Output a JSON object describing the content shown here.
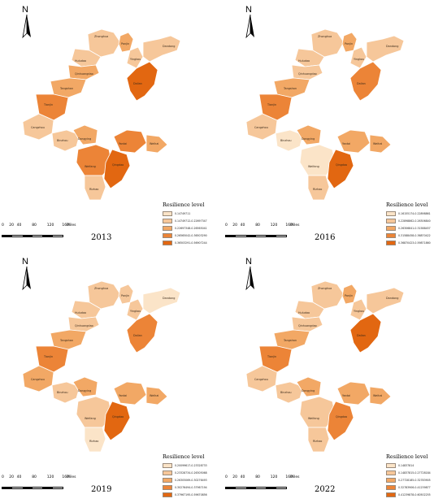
{
  "panels": [
    {
      "year": "2013",
      "legend_title": "Resilience level",
      "legend": [
        {
          "range": "0.14749711",
          "color": "#fbe4c8"
        },
        {
          "range": "0.14749712-0.22697347",
          "color": "#f6c79a"
        },
        {
          "range": "0.22697348-0.26565041",
          "color": "#f2a865"
        },
        {
          "range": "0.26565042-0.36503290",
          "color": "#ec8437"
        },
        {
          "range": "0.36503291-0.56907244",
          "color": "#e26711"
        }
      ],
      "fills": {
        "Zhonghua": 1,
        "Panjin": 2,
        "Huludao": 1,
        "Qinhuangdao": 2,
        "Yingkou": 1,
        "Dandong": 1,
        "Tangshan": 2,
        "Tianjin": 3,
        "Dalian": 4,
        "Cangzhou": 1,
        "Binzhou": 1,
        "Dongying": 2,
        "Yantai": 3,
        "Weihai": 2,
        "Weifang": 3,
        "Qingdao": 4,
        "Rizhao": 1
      }
    },
    {
      "year": "2016",
      "legend_title": "Resilience level",
      "legend": [
        {
          "range": "0.16155174-0.22898861",
          "color": "#fbe4c8"
        },
        {
          "range": "0.22898862-0.26306840",
          "color": "#f6c79a"
        },
        {
          "range": "0.26306841-0.31588457",
          "color": "#f2a865"
        },
        {
          "range": "0.31588458-0.36870422",
          "color": "#ec8437"
        },
        {
          "range": "0.36870423-0.59871860",
          "color": "#e26711"
        }
      ],
      "fills": {
        "Zhonghua": 1,
        "Panjin": 2,
        "Huludao": 1,
        "Qinhuangdao": 1,
        "Yingkou": 1,
        "Dandong": 1,
        "Tangshan": 2,
        "Tianjin": 3,
        "Dalian": 3,
        "Cangzhou": 1,
        "Binzhou": 0,
        "Dongying": 2,
        "Yantai": 2,
        "Weihai": 2,
        "Weifang": 0,
        "Qingdao": 4,
        "Rizhao": 1
      }
    },
    {
      "year": "2019",
      "legend_title": "Resilience level",
      "legend": [
        {
          "range": "0.20099617-0.23328733",
          "color": "#fbe4c8"
        },
        {
          "range": "0.23328734-0.26305068",
          "color": "#f6c79a"
        },
        {
          "range": "0.26305069-0.30276493",
          "color": "#f2a865"
        },
        {
          "range": "0.30276494-0.37967194",
          "color": "#ec8437"
        },
        {
          "range": "0.37967195-0.59670856",
          "color": "#e26711"
        }
      ],
      "fills": {
        "Zhonghua": 1,
        "Panjin": 1,
        "Huludao": 1,
        "Qinhuangdao": 1,
        "Yingkou": 1,
        "Dandong": 0,
        "Tangshan": 2,
        "Tianjin": 3,
        "Dalian": 3,
        "Cangzhou": 2,
        "Binzhou": 1,
        "Dongying": 2,
        "Yantai": 2,
        "Weihai": 2,
        "Weifang": 1,
        "Qingdao": 4,
        "Rizhao": 0
      }
    },
    {
      "year": "2022",
      "legend_title": "Resilience level",
      "legend": [
        {
          "range": "0.14837814",
          "color": "#fbe4c8"
        },
        {
          "range": "0.14837815-0.27728184",
          "color": "#f6c79a"
        },
        {
          "range": "0.27728185-0.32783905",
          "color": "#f2a865"
        },
        {
          "range": "0.32783906-0.41239877",
          "color": "#ec8437"
        },
        {
          "range": "0.41239878-0.60502255",
          "color": "#e26711"
        }
      ],
      "fills": {
        "Zhonghua": 1,
        "Panjin": 2,
        "Huludao": 1,
        "Qinhuangdao": 1,
        "Yingkou": 1,
        "Dandong": 1,
        "Tangshan": 2,
        "Tianjin": 3,
        "Dalian": 4,
        "Cangzhou": 1,
        "Binzhou": 1,
        "Dongying": 2,
        "Yantai": 2,
        "Weihai": 2,
        "Weifang": 1,
        "Qingdao": 3,
        "Rizhao": 1
      }
    }
  ],
  "north_label": "N",
  "scale": {
    "ticks": [
      "0",
      "20",
      "40",
      "80",
      "120",
      "160"
    ],
    "unit": "Miles"
  }
}
